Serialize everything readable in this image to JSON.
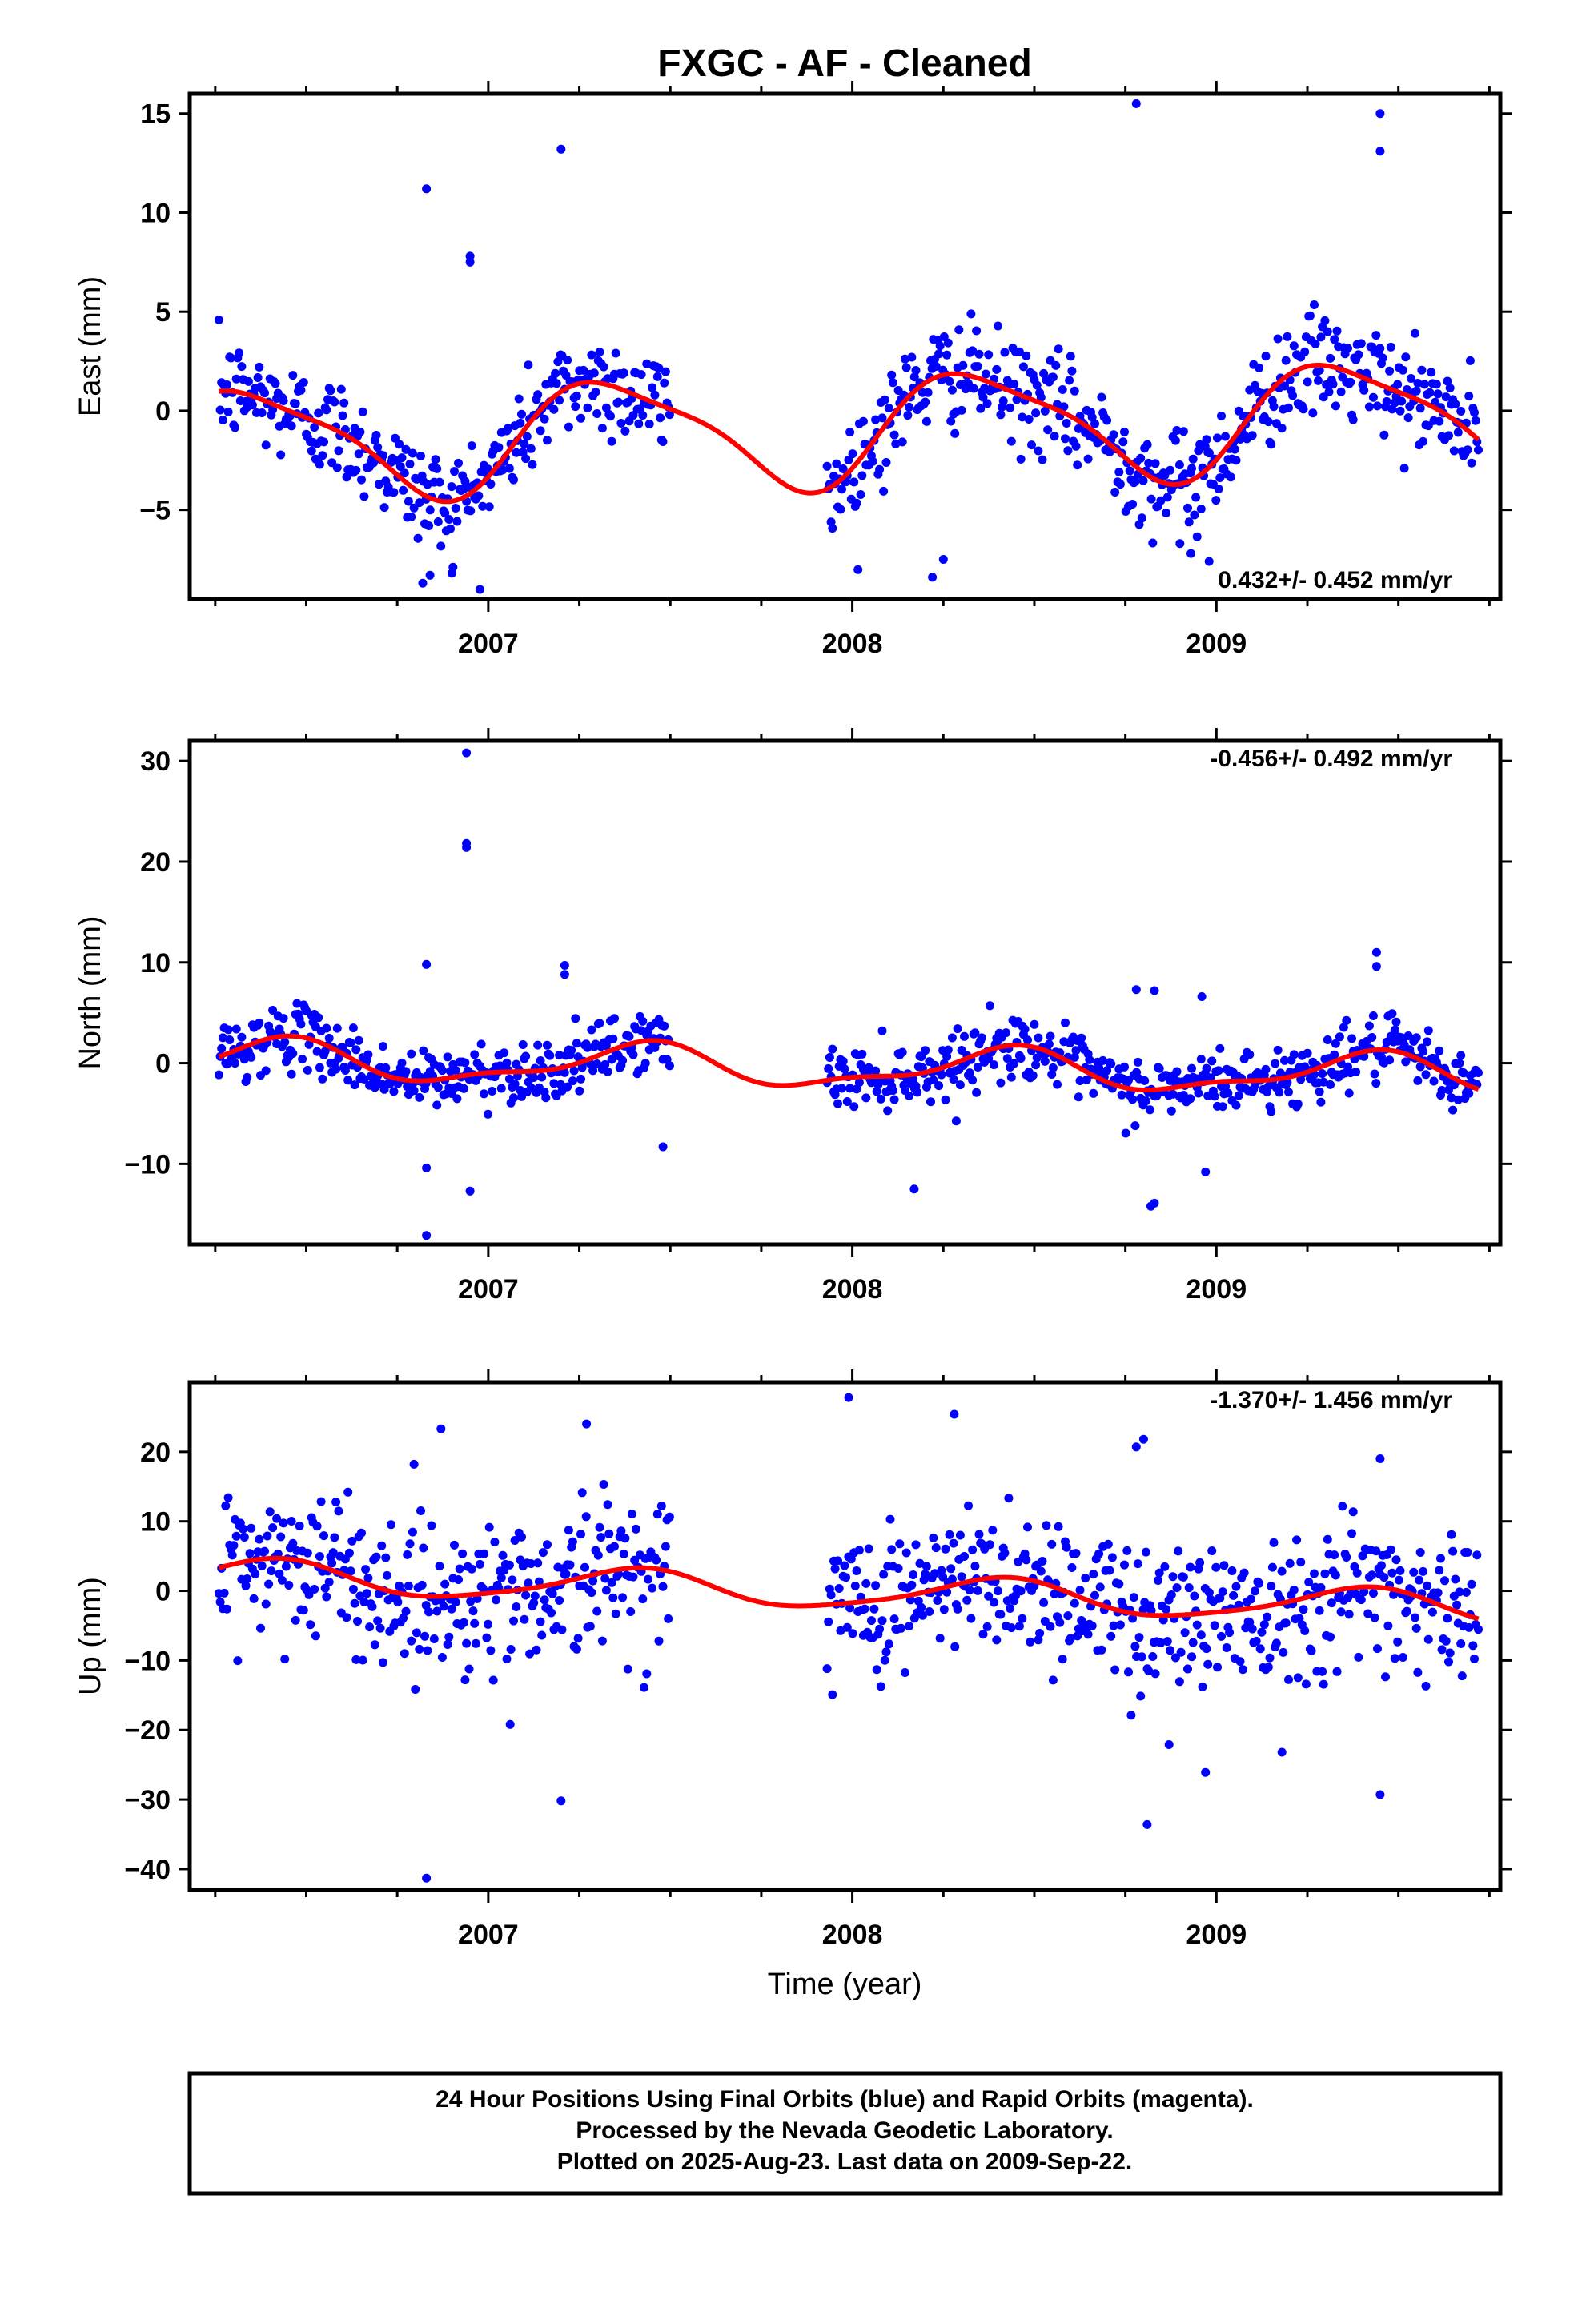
{
  "title": "FXGC  - AF - Cleaned",
  "footer": {
    "lines": [
      "24 Hour Positions Using Final Orbits (blue) and Rapid Orbits (magenta).",
      "Processed by the Nevada Geodetic Laboratory.",
      "Plotted on 2025-Aug-23. Last data on 2009-Sep-22."
    ]
  },
  "colors": {
    "points": "#0000ff",
    "fit": "#ff0000",
    "axes": "#000000"
  },
  "chart_data": [
    {
      "type": "scatter",
      "component": "east",
      "ylabel": "East (mm)",
      "xlabel": "",
      "xlim": [
        2006.18,
        2009.78
      ],
      "ylim": [
        -9.5,
        16
      ],
      "yticks": [
        -5,
        0,
        5,
        10,
        15
      ],
      "xticks_labeled": [
        2007,
        2008,
        2009
      ],
      "rate_label": "0.432+/- 0.452 mm/yr",
      "rate_position": "bottom-right",
      "data_start": 2006.26,
      "data_end": 2009.72,
      "gap": [
        2007.5,
        2007.93
      ],
      "fit": {
        "offset": -0.9,
        "rate": 0.432,
        "ref_year": 2008.0,
        "annual_cos": -1.6,
        "annual_sin": 2.2,
        "semiannual_cos": -0.4,
        "semiannual_sin": 0.5
      },
      "scatter_sigma": 1.3,
      "outliers": [
        {
          "x": 2006.83,
          "y": 11.2
        },
        {
          "x": 2006.95,
          "y": 7.8
        },
        {
          "x": 2006.95,
          "y": 7.5
        },
        {
          "x": 2007.2,
          "y": 13.2
        },
        {
          "x": 2008.78,
          "y": 15.5
        },
        {
          "x": 2009.45,
          "y": 15.0
        },
        {
          "x": 2009.45,
          "y": 13.1
        },
        {
          "x": 2006.82,
          "y": -8.7
        },
        {
          "x": 2006.84,
          "y": -8.3
        },
        {
          "x": 2006.9,
          "y": -8.2
        },
        {
          "x": 2008.22,
          "y": -8.4
        },
        {
          "x": 2008.25,
          "y": -7.5
        },
        {
          "x": 2008.93,
          "y": -7.2
        },
        {
          "x": 2008.98,
          "y": -7.6
        },
        {
          "x": 2008.9,
          "y": -6.7
        }
      ]
    },
    {
      "type": "scatter",
      "component": "north",
      "ylabel": "North (mm)",
      "xlabel": "",
      "xlim": [
        2006.18,
        2009.78
      ],
      "ylim": [
        -18,
        32
      ],
      "yticks": [
        -10,
        0,
        10,
        20,
        30
      ],
      "xticks_labeled": [
        2007,
        2008,
        2009
      ],
      "rate_label": "-0.456+/- 0.492 mm/yr",
      "rate_position": "top-right",
      "data_start": 2006.26,
      "data_end": 2009.72,
      "gap": [
        2007.5,
        2007.93
      ],
      "fit": {
        "offset": -0.5,
        "rate": -0.456,
        "ref_year": 2008.0,
        "annual_cos": -1.6,
        "annual_sin": 0.9,
        "semiannual_cos": 0.7,
        "semiannual_sin": -0.2
      },
      "scatter_sigma": 1.5,
      "outliers": [
        {
          "x": 2006.94,
          "y": 30.8
        },
        {
          "x": 2006.94,
          "y": 21.8
        },
        {
          "x": 2006.94,
          "y": 21.4
        },
        {
          "x": 2006.83,
          "y": 9.8
        },
        {
          "x": 2007.21,
          "y": 9.7
        },
        {
          "x": 2007.21,
          "y": 8.8
        },
        {
          "x": 2008.78,
          "y": 7.3
        },
        {
          "x": 2008.83,
          "y": 7.2
        },
        {
          "x": 2008.96,
          "y": 6.6
        },
        {
          "x": 2009.44,
          "y": 11.0
        },
        {
          "x": 2009.44,
          "y": 9.6
        },
        {
          "x": 2006.83,
          "y": -10.4
        },
        {
          "x": 2006.83,
          "y": -17.1
        },
        {
          "x": 2006.95,
          "y": -12.7
        },
        {
          "x": 2008.17,
          "y": -12.5
        },
        {
          "x": 2008.82,
          "y": -14.2
        },
        {
          "x": 2008.83,
          "y": -13.9
        },
        {
          "x": 2008.97,
          "y": -10.8
        },
        {
          "x": 2007.48,
          "y": -8.3
        }
      ]
    },
    {
      "type": "scatter",
      "component": "up",
      "ylabel": "Up (mm)",
      "xlabel": "Time (year)",
      "xlim": [
        2006.18,
        2009.78
      ],
      "ylim": [
        -43,
        30
      ],
      "yticks": [
        -40,
        -30,
        -20,
        -10,
        0,
        10,
        20
      ],
      "xticks_labeled": [
        2007,
        2008,
        2009
      ],
      "rate_label": "-1.370+/- 1.456 mm/yr",
      "rate_position": "top-right",
      "data_start": 2006.26,
      "data_end": 2009.72,
      "gap": [
        2007.5,
        2007.93
      ],
      "fit": {
        "offset": -0.2,
        "rate": -1.37,
        "ref_year": 2008.0,
        "annual_cos": -1.9,
        "annual_sin": 1.4,
        "semiannual_cos": 0.4,
        "semiannual_sin": -0.2
      },
      "scatter_sigma": 5.5,
      "outliers": [
        {
          "x": 2007.99,
          "y": 27.8
        },
        {
          "x": 2008.28,
          "y": 25.4
        },
        {
          "x": 2008.78,
          "y": 20.7
        },
        {
          "x": 2008.8,
          "y": 21.8
        },
        {
          "x": 2009.45,
          "y": 19.0
        },
        {
          "x": 2007.27,
          "y": 24.0
        },
        {
          "x": 2006.87,
          "y": 23.3
        },
        {
          "x": 2006.83,
          "y": -41.3
        },
        {
          "x": 2007.2,
          "y": -30.2
        },
        {
          "x": 2008.81,
          "y": -33.6
        },
        {
          "x": 2008.97,
          "y": -26.1
        },
        {
          "x": 2009.45,
          "y": -29.3
        },
        {
          "x": 2007.06,
          "y": -19.2
        },
        {
          "x": 2009.18,
          "y": -23.2
        },
        {
          "x": 2008.87,
          "y": -22.1
        }
      ]
    }
  ]
}
